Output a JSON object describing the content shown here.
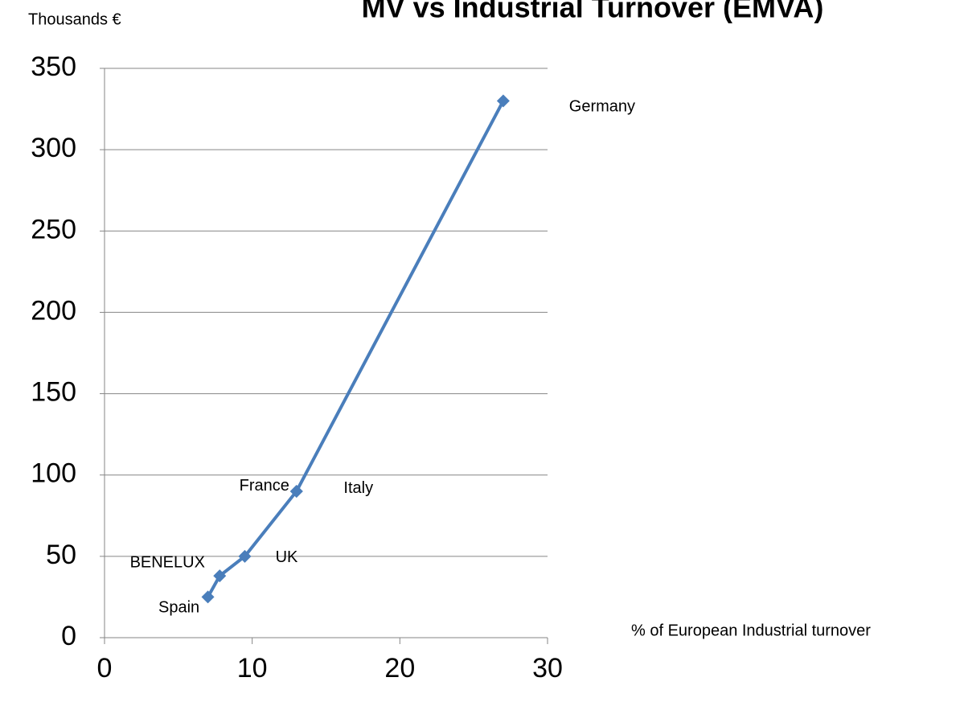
{
  "chart_data": {
    "type": "line",
    "title": "MV vs Industrial Turnover (EMVA)",
    "y_axis_label": "Thousands €",
    "x_axis_label": "% of European Industrial turnover",
    "x": [
      7,
      7.8,
      9.5,
      13,
      13,
      27
    ],
    "values": [
      25,
      38,
      50,
      90,
      90,
      330
    ],
    "point_labels": [
      "Spain",
      "BENELUX",
      "UK",
      "France",
      "Italy",
      "Germany"
    ],
    "color": "#4a7ebb",
    "xlim": [
      0,
      30
    ],
    "xticks": [
      0,
      10,
      20,
      30
    ],
    "ylim": [
      0,
      350
    ],
    "yticks": [
      0,
      50,
      100,
      150,
      200,
      250,
      300,
      350
    ],
    "grid": true
  }
}
